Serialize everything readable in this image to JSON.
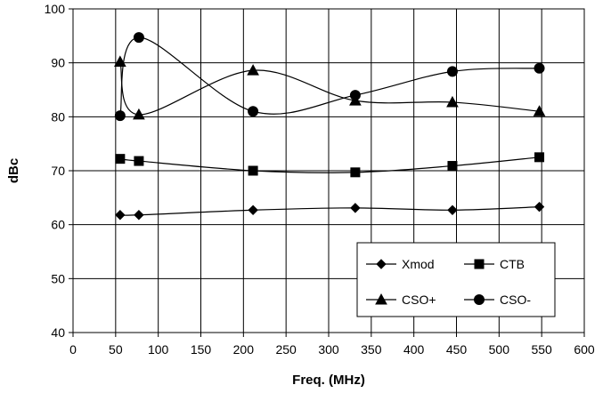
{
  "chart_data": {
    "type": "line",
    "title": "",
    "xlabel": "Freq. (MHz)",
    "ylabel": "dBc",
    "xlim": [
      0,
      600
    ],
    "ylim": [
      40,
      100
    ],
    "x_ticks": [
      0,
      50,
      100,
      150,
      200,
      250,
      300,
      350,
      400,
      450,
      500,
      550,
      600
    ],
    "y_ticks": [
      40,
      50,
      60,
      70,
      80,
      90,
      100
    ],
    "grid": true,
    "legend_position": "bottom-right",
    "x": [
      55.25,
      77.25,
      211.25,
      331.25,
      445.25,
      547.25
    ],
    "series": [
      {
        "name": "Xmod",
        "marker": "diamond",
        "values": [
          61.8,
          61.8,
          62.7,
          63.1,
          62.7,
          63.3
        ]
      },
      {
        "name": "CTB",
        "marker": "square",
        "values": [
          72.2,
          71.8,
          70.0,
          69.7,
          70.9,
          72.5
        ]
      },
      {
        "name": "CSO+",
        "marker": "triangle",
        "values": [
          90.2,
          80.4,
          88.6,
          83.0,
          82.7,
          81.0
        ]
      },
      {
        "name": "CSO-",
        "marker": "circle",
        "values": [
          80.2,
          94.7,
          81.0,
          84.0,
          88.4,
          89.0
        ]
      }
    ],
    "colors": {
      "line": "#000000",
      "grid": "#000000",
      "background": "#ffffff"
    }
  }
}
